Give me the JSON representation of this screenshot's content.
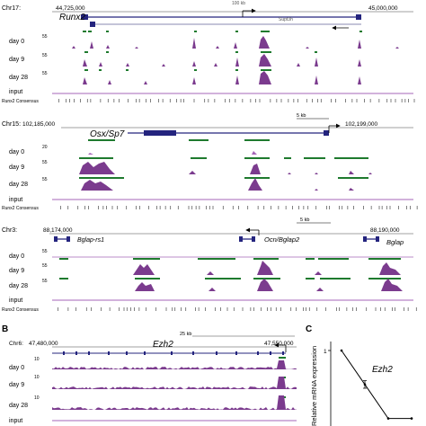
{
  "panels": {
    "b_letter": "B",
    "c_letter": "C"
  },
  "colors": {
    "signal": "#7b3b8e",
    "signal_light": "#a566b8",
    "peak": "#1e7a2e",
    "gene": "#24247e",
    "arrow": "#000000"
  },
  "rows": {
    "day0": "day 0",
    "day9": "day 9",
    "day28": "day 28",
    "input": "input",
    "consensus": "Runx2 Consensus"
  },
  "panel1": {
    "chr": "Chr17:",
    "coord_left": "44,725,000",
    "coord_right": "45,000,000",
    "scale": "100 kb",
    "gene": "Runx2",
    "gene2": "Supt3h",
    "ticks": {
      "d0": "55",
      "d9": "55",
      "d28": "55"
    }
  },
  "panel2": {
    "chr": "Chr15:",
    "coord_left": "102,185,000",
    "coord_right": "102,199,000",
    "scale": "5 kb",
    "gene": "Osx/Sp7",
    "ticks": {
      "d0": "20",
      "d9": "55",
      "d28": "55"
    }
  },
  "panel3": {
    "chr": "Chr3:",
    "coord_left": "88,174,000",
    "coord_right": "88,190,000",
    "scale": "5 kb",
    "gene_left": "Bglap-rs1",
    "gene_mid": "Ocn/Bglap2",
    "gene_right": "Bglap",
    "ticks": {
      "d0": "55",
      "d9": "55",
      "d28": "55"
    }
  },
  "panel4": {
    "chr": "Chr6:",
    "coord_left": "47,480,000",
    "coord_right": "47,550,000",
    "scale": "25 kb",
    "gene": "Ezh2",
    "ticks": {
      "d0": "10",
      "d9": "10",
      "d28": "10"
    }
  },
  "panelC": {
    "ylabel": "Relative mRNA expression",
    "gene": "Ezh2",
    "tick_1": "1",
    "chart_data": {
      "type": "line",
      "y": [
        1.0,
        0.55,
        0.1,
        0.1
      ],
      "error": [
        0,
        0.05,
        0,
        0
      ],
      "ylim": [
        0,
        1.1
      ]
    }
  }
}
